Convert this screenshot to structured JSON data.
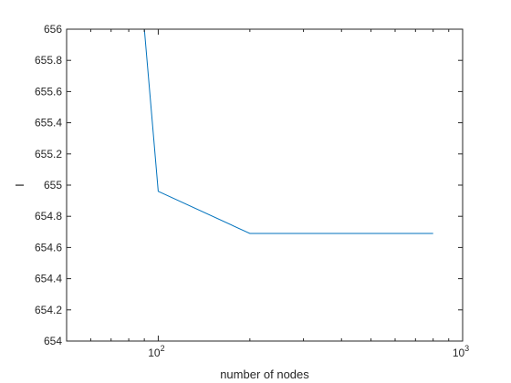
{
  "chart_data": {
    "type": "line",
    "xlabel": "number of nodes",
    "ylabel": "I",
    "xscale": "log",
    "xlim": [
      50,
      1000
    ],
    "ylim": [
      654,
      656
    ],
    "grid": false,
    "x_ticks": [
      {
        "value": 100,
        "base": "10",
        "exp": "2"
      },
      {
        "value": 1000,
        "base": "10",
        "exp": "3"
      }
    ],
    "y_ticks": [
      {
        "value": 654,
        "label": "654"
      },
      {
        "value": 654.2,
        "label": "654.2"
      },
      {
        "value": 654.4,
        "label": "654.4"
      },
      {
        "value": 654.6,
        "label": "654.6"
      },
      {
        "value": 654.8,
        "label": "654.8"
      },
      {
        "value": 655,
        "label": "655"
      },
      {
        "value": 655.2,
        "label": "655.2"
      },
      {
        "value": 655.4,
        "label": "655.4"
      },
      {
        "value": 655.6,
        "label": "655.6"
      },
      {
        "value": 655.8,
        "label": "655.8"
      },
      {
        "value": 656,
        "label": "656"
      }
    ],
    "series": [
      {
        "color": "#0072bd",
        "x": [
          90,
          100,
          200,
          800
        ],
        "y": [
          656.0,
          654.96,
          654.69,
          654.69
        ]
      }
    ]
  }
}
